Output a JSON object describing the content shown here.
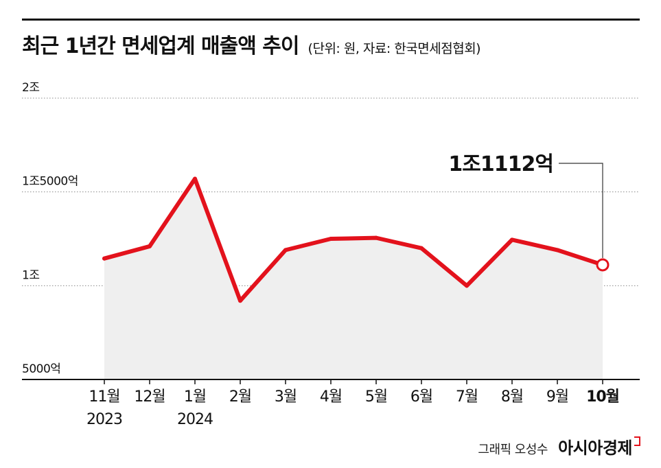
{
  "header": {
    "title": "최근 1년간 면세업계 매출액 추이",
    "subtitle": "(단위: 원, 자료: 한국면세점협회)"
  },
  "credit": {
    "graphic": "그래픽 오성수",
    "brand": "아시아경제"
  },
  "chart_data": {
    "type": "area",
    "title": "최근 1년간 면세업계 매출액 추이",
    "unit_note": "(단위: 원, 자료: 한국면세점협회)",
    "categories": [
      "11월\n2023",
      "12월",
      "1월\n2024",
      "2월",
      "3월",
      "4월",
      "5월",
      "6월",
      "7월",
      "8월",
      "9월",
      "10월"
    ],
    "series": [
      {
        "values": [
          11450,
          12100,
          15700,
          9200,
          11900,
          12500,
          12550,
          12000,
          10000,
          12450,
          11900,
          11112
        ],
        "color": "#e3121c",
        "fill": "#efefef"
      }
    ],
    "ylim": [
      5000,
      20000
    ],
    "yticks": [
      {
        "value": 20000,
        "label": "2조"
      },
      {
        "value": 15000,
        "label": "1조5000억"
      },
      {
        "value": 10000,
        "label": "1조"
      },
      {
        "value": 5000,
        "label": "5000억"
      }
    ],
    "annotation": {
      "index": 11,
      "label": "1조1112억"
    },
    "grid": true,
    "highlight_last_category": true
  }
}
